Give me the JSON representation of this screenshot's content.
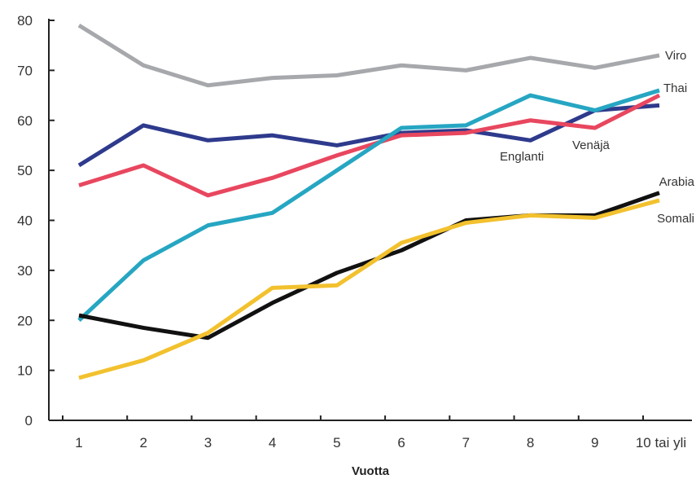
{
  "chart_data": {
    "type": "line",
    "xlabel": "Vuotta",
    "ylabel": "",
    "ylim": [
      0,
      80
    ],
    "yticks": [
      0,
      10,
      20,
      30,
      40,
      50,
      60,
      70,
      80
    ],
    "categories": [
      "1",
      "2",
      "3",
      "4",
      "5",
      "6",
      "7",
      "8",
      "9",
      "10 tai yli"
    ],
    "grid": false,
    "legend": "inline labels at line ends",
    "series": [
      {
        "name": "Viro",
        "color": "#a6a8ab",
        "values": [
          79,
          71,
          67,
          68.5,
          69,
          71,
          70,
          72.5,
          70.5,
          73
        ]
      },
      {
        "name": "Englanti",
        "color": "#2e3a8c",
        "values": [
          51,
          59,
          56,
          57,
          55,
          57.5,
          58,
          56,
          62,
          63
        ]
      },
      {
        "name": "Venäjä",
        "color": "#e8475f",
        "values": [
          47,
          51,
          45,
          48.5,
          53,
          57,
          57.5,
          60,
          58.5,
          65
        ]
      },
      {
        "name": "Thai",
        "color": "#26a6c2",
        "values": [
          20,
          32,
          39,
          41.5,
          50,
          58.5,
          59,
          65,
          62,
          66
        ]
      },
      {
        "name": "Arabia",
        "color": "#111111",
        "values": [
          21,
          18.5,
          16.5,
          23.5,
          29.5,
          34,
          40,
          41,
          41,
          45.5
        ]
      },
      {
        "name": "Somali",
        "color": "#f2c12e",
        "values": [
          8.5,
          12,
          17.5,
          26.5,
          27,
          35.5,
          39.5,
          41,
          40.5,
          44
        ]
      }
    ]
  }
}
